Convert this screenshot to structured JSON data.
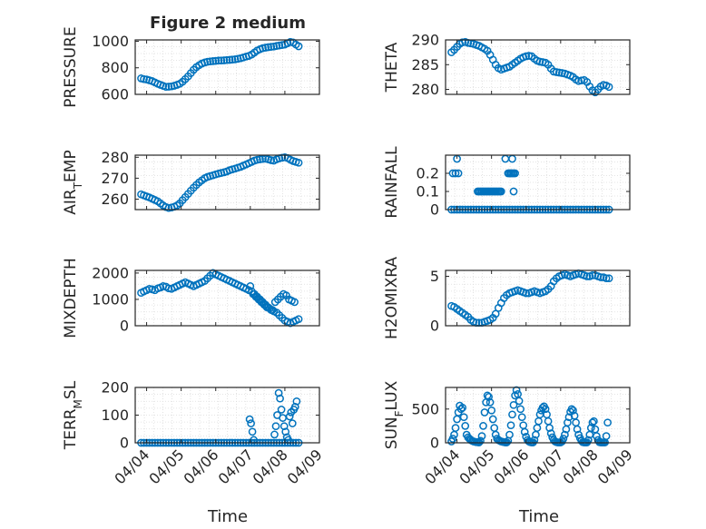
{
  "figure": {
    "title": "Figure 2 medium",
    "xlabel": "Time",
    "date_ticks": [
      "04/04",
      "04/05",
      "04/06",
      "04/07",
      "04/08",
      "04/09"
    ]
  },
  "colors": {
    "marker": "#0072BD",
    "axis": "#262626",
    "grid": "#dcdcdc",
    "background": "#ffffff"
  },
  "chart_data": [
    {
      "type": "scatter",
      "title": "Figure 2 medium",
      "ylabel": "PRESSURE",
      "yticks": [
        600,
        800,
        1000
      ],
      "ylim": [
        600,
        1010
      ],
      "xlim": [
        "04/04",
        "04/09"
      ],
      "grid": true,
      "x": [
        3.84,
        3.92,
        4.0,
        4.08,
        4.16,
        4.24,
        4.32,
        4.4,
        4.48,
        4.56,
        4.64,
        4.72,
        4.8,
        4.88,
        4.96,
        5.04,
        5.12,
        5.2,
        5.28,
        5.36,
        5.44,
        5.52,
        5.6,
        5.68,
        5.76,
        5.84,
        5.92,
        6.0,
        6.08,
        6.16,
        6.24,
        6.32,
        6.4,
        6.48,
        6.56,
        6.64,
        6.72,
        6.8,
        6.88,
        6.96,
        7.04,
        7.12,
        7.2,
        7.28,
        7.36,
        7.44,
        7.52,
        7.6,
        7.68,
        7.76,
        7.84,
        7.92,
        8.0,
        8.08,
        8.16,
        8.24,
        8.32,
        8.4
      ],
      "y": [
        720,
        715,
        712,
        706,
        700,
        690,
        680,
        672,
        664,
        657,
        658,
        660,
        665,
        672,
        680,
        695,
        715,
        735,
        760,
        785,
        805,
        820,
        832,
        840,
        845,
        848,
        850,
        852,
        855,
        855,
        856,
        858,
        860,
        862,
        864,
        868,
        872,
        878,
        885,
        890,
        900,
        915,
        930,
        940,
        948,
        952,
        955,
        958,
        960,
        965,
        968,
        972,
        975,
        985,
        995,
        990,
        975,
        962
      ]
    },
    {
      "type": "scatter",
      "ylabel": "THETA",
      "yticks": [
        280,
        285,
        290
      ],
      "ylim": [
        279,
        290
      ],
      "xlim": [
        "04/04",
        "04/09"
      ],
      "grid": true,
      "x": [
        3.84,
        3.92,
        4.0,
        4.08,
        4.16,
        4.24,
        4.32,
        4.4,
        4.48,
        4.56,
        4.64,
        4.72,
        4.8,
        4.88,
        4.96,
        5.04,
        5.12,
        5.2,
        5.28,
        5.36,
        5.44,
        5.52,
        5.6,
        5.68,
        5.76,
        5.84,
        5.92,
        6.0,
        6.08,
        6.16,
        6.24,
        6.32,
        6.4,
        6.48,
        6.56,
        6.64,
        6.72,
        6.8,
        6.88,
        6.96,
        7.04,
        7.12,
        7.2,
        7.28,
        7.36,
        7.44,
        7.52,
        7.6,
        7.68,
        7.76,
        7.84,
        7.92,
        8.0,
        8.08,
        8.16,
        8.24,
        8.32,
        8.4
      ],
      "y": [
        287.5,
        288.0,
        288.6,
        289.2,
        289.5,
        289.6,
        289.4,
        289.3,
        289.2,
        289.0,
        288.8,
        288.5,
        288.2,
        287.8,
        287.0,
        286.0,
        285.0,
        284.3,
        284.0,
        284.2,
        284.4,
        284.6,
        285.0,
        285.4,
        285.8,
        286.2,
        286.5,
        286.7,
        286.8,
        286.7,
        286.2,
        285.8,
        285.6,
        285.5,
        285.4,
        285.0,
        284.2,
        283.6,
        283.5,
        283.4,
        283.3,
        283.2,
        283.0,
        282.8,
        282.5,
        282.0,
        281.7,
        281.8,
        281.9,
        281.5,
        280.6,
        279.8,
        279.4,
        280.0,
        280.6,
        280.9,
        280.8,
        280.5
      ]
    },
    {
      "type": "scatter",
      "ylabel": "AIR_TEMP",
      "yticks": [
        260,
        270,
        280
      ],
      "ylim": [
        255,
        281
      ],
      "xlim": [
        "04/04",
        "04/09"
      ],
      "grid": true,
      "x": [
        3.84,
        3.92,
        4.0,
        4.08,
        4.16,
        4.24,
        4.32,
        4.4,
        4.48,
        4.56,
        4.64,
        4.72,
        4.8,
        4.88,
        4.96,
        5.04,
        5.12,
        5.2,
        5.28,
        5.36,
        5.44,
        5.52,
        5.6,
        5.68,
        5.76,
        5.84,
        5.92,
        6.0,
        6.08,
        6.16,
        6.24,
        6.32,
        6.4,
        6.48,
        6.56,
        6.64,
        6.72,
        6.8,
        6.88,
        6.96,
        7.04,
        7.12,
        7.2,
        7.28,
        7.36,
        7.44,
        7.52,
        7.6,
        7.68,
        7.76,
        7.84,
        7.92,
        8.0,
        8.08,
        8.16,
        8.24,
        8.32,
        8.4
      ],
      "y": [
        262.3,
        261.8,
        261.3,
        260.8,
        260.2,
        259.6,
        259.0,
        258.0,
        257.0,
        256.2,
        255.8,
        256.0,
        256.4,
        257.0,
        258.0,
        259.5,
        261.0,
        262.5,
        264.0,
        265.5,
        266.8,
        268.0,
        269.0,
        270.0,
        270.6,
        271.0,
        271.4,
        271.8,
        272.2,
        272.5,
        272.8,
        273.2,
        273.8,
        274.2,
        274.6,
        275.0,
        275.4,
        276.0,
        276.6,
        277.2,
        277.8,
        278.4,
        278.8,
        279.0,
        279.2,
        279.3,
        279.0,
        278.6,
        278.4,
        279.0,
        279.5,
        279.8,
        280.0,
        279.6,
        278.8,
        278.2,
        277.8,
        277.4
      ]
    },
    {
      "type": "scatter",
      "ylabel": "RAINFALL",
      "yticks": [
        0,
        0.1,
        0.2
      ],
      "ylim": [
        0,
        0.3
      ],
      "xlim": [
        "04/04",
        "04/09"
      ],
      "grid": true,
      "x": [
        3.84,
        3.92,
        4.0,
        4.08,
        4.16,
        4.24,
        4.32,
        4.4,
        4.48,
        4.56,
        4.64,
        4.72,
        4.8,
        4.88,
        4.96,
        5.04,
        5.12,
        5.2,
        5.28,
        5.36,
        5.44,
        5.52,
        5.6,
        5.68,
        5.76,
        5.84,
        5.92,
        6.0,
        6.08,
        6.16,
        6.24,
        6.32,
        6.4,
        6.48,
        6.56,
        6.64,
        6.72,
        6.8,
        6.88,
        6.96,
        7.04,
        7.12,
        7.2,
        7.28,
        7.36,
        7.44,
        7.52,
        7.6,
        7.68,
        7.76,
        7.84,
        7.92,
        8.0,
        8.08,
        8.16,
        8.24,
        8.32,
        8.4,
        3.88,
        3.96,
        4.0,
        4.04,
        4.6,
        4.64,
        4.68,
        4.72,
        4.76,
        4.8,
        4.84,
        4.88,
        4.92,
        4.96,
        5.0,
        5.04,
        5.08,
        5.12,
        5.16,
        5.2,
        5.24,
        5.28,
        5.48,
        5.52,
        5.56,
        5.6,
        5.64,
        5.68,
        5.4,
        5.6,
        5.64
      ],
      "y": [
        0,
        0,
        0,
        0,
        0,
        0,
        0,
        0,
        0,
        0,
        0,
        0,
        0,
        0,
        0,
        0,
        0,
        0,
        0,
        0,
        0,
        0,
        0,
        0,
        0,
        0,
        0,
        0,
        0,
        0,
        0,
        0,
        0,
        0,
        0,
        0,
        0,
        0,
        0,
        0,
        0,
        0,
        0,
        0,
        0,
        0,
        0,
        0,
        0,
        0,
        0,
        0,
        0,
        0,
        0,
        0,
        0,
        0,
        0.2,
        0.2,
        0.28,
        0.2,
        0.1,
        0.1,
        0.1,
        0.1,
        0.1,
        0.1,
        0.1,
        0.1,
        0.1,
        0.1,
        0.1,
        0.1,
        0.1,
        0.1,
        0.1,
        0.1,
        0.1,
        0.1,
        0.2,
        0.2,
        0.2,
        0.2,
        0.2,
        0.2,
        0.28,
        0.28,
        0.1
      ]
    },
    {
      "type": "scatter",
      "ylabel": "MIXDEPTH",
      "yticks": [
        0,
        1000,
        2000
      ],
      "ylim": [
        0,
        2100
      ],
      "xlim": [
        "04/04",
        "04/09"
      ],
      "grid": true,
      "x": [
        3.84,
        3.92,
        4.0,
        4.08,
        4.16,
        4.24,
        4.32,
        4.4,
        4.48,
        4.56,
        4.64,
        4.72,
        4.8,
        4.88,
        4.96,
        5.04,
        5.12,
        5.2,
        5.28,
        5.36,
        5.44,
        5.52,
        5.6,
        5.68,
        5.76,
        5.84,
        5.92,
        6.0,
        6.08,
        6.16,
        6.24,
        6.32,
        6.4,
        6.48,
        6.56,
        6.64,
        6.72,
        6.8,
        6.88,
        6.96,
        7.04,
        7.12,
        7.2,
        7.28,
        7.36,
        7.44,
        7.52,
        7.6,
        7.68,
        7.76,
        7.84,
        7.92,
        8.0,
        8.08,
        8.16,
        8.24,
        8.32,
        8.4,
        7.0,
        7.08,
        7.16,
        7.24,
        7.32,
        7.4,
        7.48,
        7.56,
        7.64,
        7.72,
        7.8,
        7.88,
        7.96,
        8.04,
        8.12,
        8.2,
        8.28
      ],
      "y": [
        1250,
        1300,
        1350,
        1400,
        1380,
        1350,
        1420,
        1450,
        1500,
        1480,
        1420,
        1400,
        1450,
        1500,
        1550,
        1600,
        1650,
        1600,
        1550,
        1500,
        1550,
        1600,
        1650,
        1700,
        1800,
        1900,
        2000,
        1950,
        1900,
        1850,
        1800,
        1750,
        1700,
        1650,
        1600,
        1550,
        1500,
        1450,
        1400,
        1350,
        1300,
        1200,
        1100,
        1000,
        900,
        800,
        700,
        600,
        550,
        500,
        400,
        300,
        200,
        150,
        100,
        150,
        200,
        250,
        1500,
        1200,
        1100,
        1000,
        900,
        800,
        700,
        650,
        600,
        900,
        1000,
        1100,
        1200,
        1150,
        1000,
        950,
        900
      ]
    },
    {
      "type": "scatter",
      "ylabel": "H2OMIXRA",
      "yticks": [
        0,
        5
      ],
      "ylim": [
        0,
        5.6
      ],
      "xlim": [
        "04/04",
        "04/09"
      ],
      "grid": true,
      "x": [
        3.84,
        3.92,
        4.0,
        4.08,
        4.16,
        4.24,
        4.32,
        4.4,
        4.48,
        4.56,
        4.64,
        4.72,
        4.8,
        4.88,
        4.96,
        5.04,
        5.12,
        5.2,
        5.28,
        5.36,
        5.44,
        5.52,
        5.6,
        5.68,
        5.76,
        5.84,
        5.92,
        6.0,
        6.08,
        6.16,
        6.24,
        6.32,
        6.4,
        6.48,
        6.56,
        6.64,
        6.72,
        6.8,
        6.88,
        6.96,
        7.04,
        7.12,
        7.2,
        7.28,
        7.36,
        7.44,
        7.52,
        7.6,
        7.68,
        7.76,
        7.84,
        7.92,
        8.0,
        8.08,
        8.16,
        8.24,
        8.32,
        8.4
      ],
      "y": [
        2.0,
        1.9,
        1.7,
        1.5,
        1.3,
        1.1,
        0.9,
        0.6,
        0.4,
        0.3,
        0.3,
        0.3,
        0.4,
        0.5,
        0.6,
        0.8,
        1.2,
        1.8,
        2.3,
        2.8,
        3.1,
        3.3,
        3.4,
        3.5,
        3.6,
        3.5,
        3.4,
        3.3,
        3.3,
        3.4,
        3.5,
        3.4,
        3.3,
        3.4,
        3.5,
        3.7,
        4.0,
        4.5,
        4.8,
        5.0,
        5.1,
        5.2,
        5.1,
        5.0,
        5.1,
        5.2,
        5.3,
        5.2,
        5.1,
        5.0,
        5.0,
        5.1,
        5.1,
        5.0,
        4.9,
        4.9,
        4.8,
        4.8
      ]
    },
    {
      "type": "scatter",
      "ylabel": "TERR_MSL",
      "yticks": [
        0,
        100,
        200
      ],
      "ylim": [
        0,
        200
      ],
      "xlim": [
        "04/04",
        "04/09"
      ],
      "grid": true,
      "x": [
        3.84,
        3.92,
        4.0,
        4.08,
        4.16,
        4.24,
        4.32,
        4.4,
        4.48,
        4.56,
        4.64,
        4.72,
        4.8,
        4.88,
        4.96,
        5.04,
        5.12,
        5.2,
        5.28,
        5.36,
        5.44,
        5.52,
        5.6,
        5.68,
        5.76,
        5.84,
        5.92,
        6.0,
        6.08,
        6.16,
        6.24,
        6.32,
        6.4,
        6.48,
        6.56,
        6.64,
        6.72,
        6.8,
        6.88,
        6.96,
        7.04,
        7.12,
        7.2,
        7.28,
        7.36,
        7.44,
        7.52,
        7.6,
        7.68,
        7.76,
        7.84,
        7.92,
        8.0,
        8.08,
        8.16,
        8.24,
        8.32,
        8.4,
        6.98,
        7.02,
        7.06,
        7.1,
        7.7,
        7.74,
        7.78,
        7.82,
        7.86,
        7.9,
        7.94,
        7.98,
        8.02,
        8.06,
        8.1,
        8.14,
        8.18,
        8.22,
        8.26,
        8.3,
        8.34
      ],
      "y": [
        0,
        0,
        0,
        0,
        0,
        0,
        0,
        0,
        0,
        0,
        0,
        0,
        0,
        0,
        0,
        0,
        0,
        0,
        0,
        0,
        0,
        0,
        0,
        0,
        0,
        0,
        0,
        0,
        0,
        0,
        0,
        0,
        0,
        0,
        0,
        0,
        0,
        0,
        0,
        0,
        0,
        0,
        0,
        0,
        0,
        0,
        0,
        0,
        0,
        0,
        0,
        0,
        0,
        0,
        0,
        0,
        0,
        0,
        85,
        70,
        40,
        10,
        30,
        60,
        100,
        180,
        160,
        120,
        90,
        60,
        40,
        20,
        10,
        95,
        110,
        70,
        120,
        130,
        150
      ]
    },
    {
      "type": "scatter",
      "ylabel": "SUN_FLUX",
      "yticks": [
        0,
        500
      ],
      "ylim": [
        0,
        820
      ],
      "xlim": [
        "04/04",
        "04/09"
      ],
      "grid": true,
      "x": [
        3.84,
        3.88,
        3.92,
        3.96,
        4.0,
        4.04,
        4.08,
        4.12,
        4.16,
        4.2,
        4.24,
        4.28,
        4.32,
        4.36,
        4.4,
        4.44,
        4.48,
        4.52,
        4.56,
        4.6,
        4.64,
        4.68,
        4.72,
        4.76,
        4.8,
        4.84,
        4.88,
        4.92,
        4.96,
        5.0,
        5.04,
        5.08,
        5.12,
        5.16,
        5.2,
        5.24,
        5.28,
        5.32,
        5.36,
        5.4,
        5.44,
        5.48,
        5.52,
        5.56,
        5.6,
        5.64,
        5.68,
        5.72,
        5.76,
        5.8,
        5.84,
        5.88,
        5.92,
        5.96,
        6.0,
        6.04,
        6.08,
        6.12,
        6.16,
        6.2,
        6.24,
        6.28,
        6.32,
        6.36,
        6.4,
        6.44,
        6.48,
        6.52,
        6.56,
        6.6,
        6.64,
        6.68,
        6.72,
        6.76,
        6.8,
        6.84,
        6.88,
        6.92,
        6.96,
        7.0,
        7.04,
        7.08,
        7.12,
        7.16,
        7.2,
        7.24,
        7.28,
        7.32,
        7.36,
        7.4,
        7.44,
        7.48,
        7.52,
        7.56,
        7.6,
        7.64,
        7.68,
        7.72,
        7.76,
        7.8,
        7.84,
        7.88,
        7.92,
        7.96,
        8.0,
        8.04,
        8.08,
        8.12,
        8.16,
        8.2,
        8.24,
        8.28,
        8.32,
        8.36
      ],
      "y": [
        20,
        60,
        120,
        220,
        350,
        450,
        550,
        500,
        520,
        380,
        250,
        120,
        80,
        60,
        40,
        30,
        20,
        15,
        10,
        8,
        5,
        30,
        100,
        250,
        450,
        600,
        700,
        680,
        600,
        480,
        350,
        220,
        120,
        60,
        40,
        30,
        20,
        15,
        10,
        5,
        5,
        30,
        120,
        260,
        420,
        560,
        700,
        780,
        720,
        620,
        500,
        380,
        260,
        160,
        90,
        40,
        20,
        10,
        5,
        5,
        40,
        120,
        220,
        320,
        420,
        480,
        520,
        540,
        500,
        420,
        320,
        220,
        140,
        80,
        40,
        20,
        10,
        5,
        5,
        5,
        20,
        60,
        120,
        200,
        300,
        380,
        460,
        500,
        480,
        400,
        300,
        200,
        120,
        70,
        30,
        10,
        5,
        5,
        5,
        40,
        120,
        220,
        300,
        320,
        200,
        100,
        40,
        10,
        5,
        5,
        5,
        5,
        100,
        300
      ]
    }
  ]
}
